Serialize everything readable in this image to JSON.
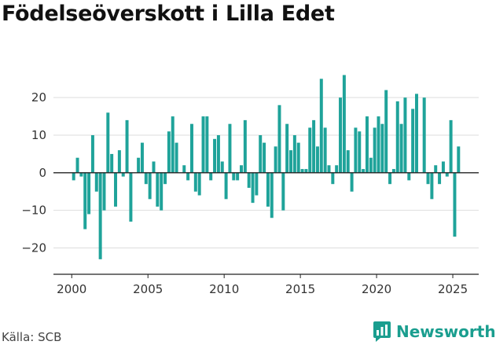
{
  "title": "Födelseöverskott i Lilla Edet",
  "source": "Källa: SCB",
  "brand": {
    "name": "Newsworthy",
    "icon": "newsworthy-logo-icon"
  },
  "colors": {
    "bar": "#1fa39a",
    "grid": "#dddddd",
    "axis": "#222222",
    "brand": "#1a9e8f"
  },
  "chart_data": {
    "type": "bar",
    "title": "Födelseöverskott i Lilla Edet",
    "xlabel": "",
    "ylabel": "",
    "ylim": [
      -27,
      33
    ],
    "xlim": [
      1998.8,
      2026.7
    ],
    "y_ticks": [
      -20,
      -10,
      0,
      10,
      20
    ],
    "x_ticks": [
      2000,
      2005,
      2010,
      2015,
      2020,
      2025
    ],
    "grid": "horizontal",
    "legend": "none",
    "x": [
      2000.125,
      2000.375,
      2000.625,
      2000.875,
      2001.125,
      2001.375,
      2001.625,
      2001.875,
      2002.125,
      2002.375,
      2002.625,
      2002.875,
      2003.125,
      2003.375,
      2003.625,
      2003.875,
      2004.125,
      2004.375,
      2004.625,
      2004.875,
      2005.125,
      2005.375,
      2005.625,
      2005.875,
      2006.125,
      2006.375,
      2006.625,
      2006.875,
      2007.125,
      2007.375,
      2007.625,
      2007.875,
      2008.125,
      2008.375,
      2008.625,
      2008.875,
      2009.125,
      2009.375,
      2009.625,
      2009.875,
      2010.125,
      2010.375,
      2010.625,
      2010.875,
      2011.125,
      2011.375,
      2011.625,
      2011.875,
      2012.125,
      2012.375,
      2012.625,
      2012.875,
      2013.125,
      2013.375,
      2013.625,
      2013.875,
      2014.125,
      2014.375,
      2014.625,
      2014.875,
      2015.125,
      2015.375,
      2015.625,
      2015.875,
      2016.125,
      2016.375,
      2016.625,
      2016.875,
      2017.125,
      2017.375,
      2017.625,
      2017.875,
      2018.125,
      2018.375,
      2018.625,
      2018.875,
      2019.125,
      2019.375,
      2019.625,
      2019.875,
      2020.125,
      2020.375,
      2020.625,
      2020.875,
      2021.125,
      2021.375,
      2021.625,
      2021.875,
      2022.125,
      2022.375,
      2022.625,
      2022.875,
      2023.125,
      2023.375,
      2023.625,
      2023.875,
      2024.125,
      2024.375,
      2024.625,
      2024.875,
      2025.125,
      2025.375
    ],
    "values": [
      -2,
      4,
      -1,
      -15,
      -11,
      10,
      -5,
      -23,
      -10,
      16,
      5,
      -9,
      6,
      -1,
      14,
      -13,
      0,
      4,
      8,
      -3,
      -7,
      3,
      -9,
      -10,
      -3,
      11,
      15,
      8,
      0,
      2,
      -2,
      13,
      -5,
      -6,
      15,
      15,
      -2,
      9,
      10,
      3,
      -7,
      13,
      -2,
      -2,
      2,
      14,
      -4,
      -8,
      -6,
      10,
      8,
      -9,
      -12,
      7,
      18,
      -10,
      13,
      6,
      10,
      8,
      1,
      1,
      12,
      14,
      7,
      25,
      12,
      2,
      -3,
      2,
      20,
      26,
      6,
      -5,
      12,
      11,
      1,
      15,
      4,
      12,
      15,
      13,
      22,
      -3,
      1,
      19,
      13,
      20,
      -2,
      17,
      21,
      0,
      20,
      -3,
      -7,
      2,
      -3,
      3,
      -1,
      14,
      -17,
      7
    ]
  }
}
